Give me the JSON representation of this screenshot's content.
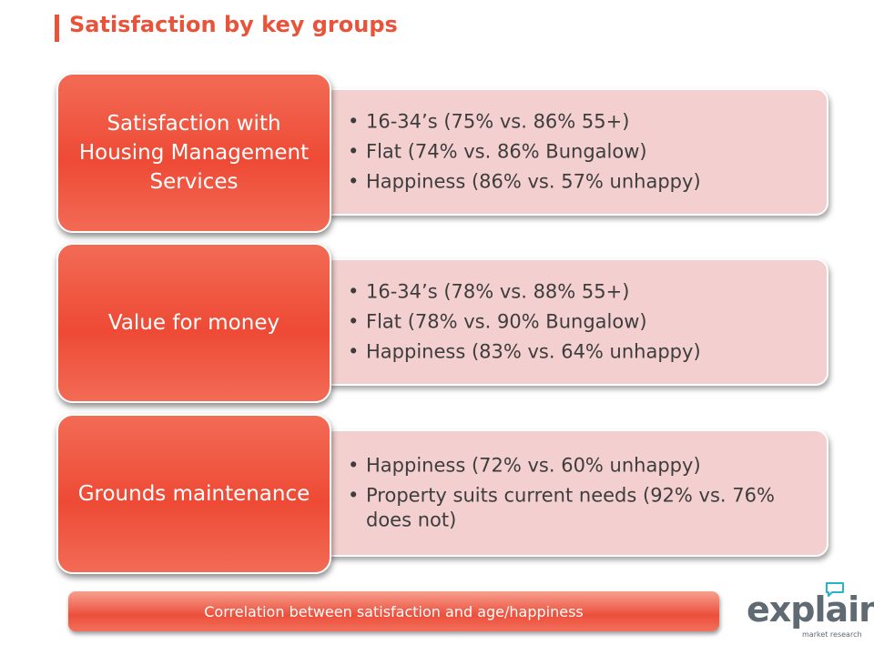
{
  "title": "Satisfaction by key groups",
  "accent_color": "#e8533a",
  "groups": [
    {
      "label": "Satisfaction with Housing Management Services",
      "bullets": [
        "16-34’s (75% vs. 86% 55+)",
        "Flat (74% vs. 86% Bungalow)",
        "Happiness (86% vs. 57% unhappy)"
      ]
    },
    {
      "label": "Value for money",
      "bullets": [
        "16-34’s (78% vs. 88% 55+)",
        "Flat (78% vs. 90% Bungalow)",
        "Happiness (83% vs. 64% unhappy)"
      ]
    },
    {
      "label": "Grounds maintenance",
      "bullets": [
        "Happiness (72% vs. 60% unhappy)",
        "Property suits current needs (92% vs. 76% does not)"
      ]
    }
  ],
  "footer": "Correlation between satisfaction and age/happiness",
  "logo": {
    "name": "explain",
    "tagline": "market research",
    "icon": "speech-bubble-icon"
  }
}
